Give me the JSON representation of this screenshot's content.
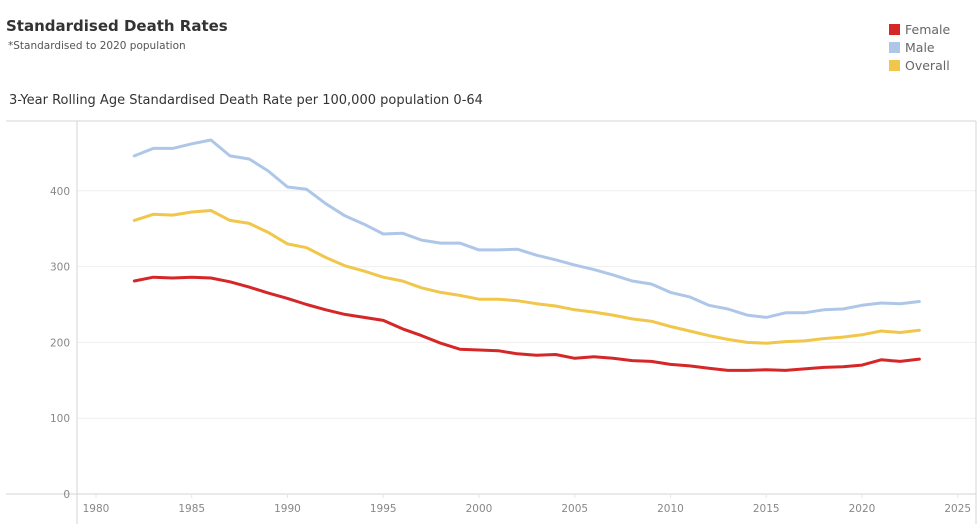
{
  "header": {
    "title": "Standardised Death Rates",
    "subtitle": "*Standardised to 2020 population"
  },
  "legend": {
    "items": [
      {
        "label": "Female",
        "color": "#d62728"
      },
      {
        "label": "Male",
        "color": "#aec7e8"
      },
      {
        "label": "Overall",
        "color": "#f0c74a"
      }
    ]
  },
  "chart_data": {
    "type": "line",
    "title": "3-Year Rolling Age Standardised Death Rate per 100,000 population 0-64",
    "xlabel": "",
    "ylabel": "",
    "xlim": [
      1977,
      2026
    ],
    "ylim": [
      0,
      490
    ],
    "x_ticks": [
      1980,
      1985,
      1990,
      1995,
      2000,
      2005,
      2010,
      2015,
      2020,
      2025
    ],
    "y_ticks": [
      0,
      100,
      200,
      300,
      400
    ],
    "grid": true,
    "legend_position": "top-right",
    "x": [
      1982,
      1983,
      1984,
      1985,
      1986,
      1987,
      1988,
      1989,
      1990,
      1991,
      1992,
      1993,
      1994,
      1995,
      1996,
      1997,
      1998,
      1999,
      2000,
      2001,
      2002,
      2003,
      2004,
      2005,
      2006,
      2007,
      2008,
      2009,
      2010,
      2011,
      2012,
      2013,
      2014,
      2015,
      2016,
      2017,
      2018,
      2019,
      2020,
      2021,
      2022,
      2023
    ],
    "series": [
      {
        "name": "Male",
        "color": "#aec7e8",
        "values": [
          446,
          456,
          456,
          462,
          467,
          446,
          442,
          426,
          405,
          402,
          383,
          367,
          356,
          343,
          344,
          335,
          331,
          331,
          322,
          322,
          323,
          315,
          309,
          302,
          296,
          289,
          281,
          277,
          266,
          260,
          249,
          244,
          236,
          233,
          239,
          239,
          243,
          244,
          249,
          252,
          251,
          254
        ]
      },
      {
        "name": "Overall",
        "color": "#f0c74a",
        "values": [
          361,
          369,
          368,
          372,
          374,
          361,
          357,
          345,
          330,
          325,
          312,
          301,
          294,
          286,
          281,
          272,
          266,
          262,
          257,
          257,
          255,
          251,
          248,
          243,
          240,
          236,
          231,
          228,
          221,
          215,
          209,
          204,
          200,
          199,
          201,
          202,
          205,
          207,
          210,
          215,
          213,
          216
        ]
      },
      {
        "name": "Female",
        "color": "#d62728",
        "values": [
          281,
          286,
          285,
          286,
          285,
          280,
          273,
          265,
          258,
          250,
          243,
          237,
          233,
          229,
          218,
          209,
          199,
          191,
          190,
          189,
          185,
          183,
          184,
          179,
          181,
          179,
          176,
          175,
          171,
          169,
          166,
          163,
          163,
          164,
          163,
          165,
          167,
          168,
          170,
          177,
          175,
          178
        ]
      }
    ]
  }
}
